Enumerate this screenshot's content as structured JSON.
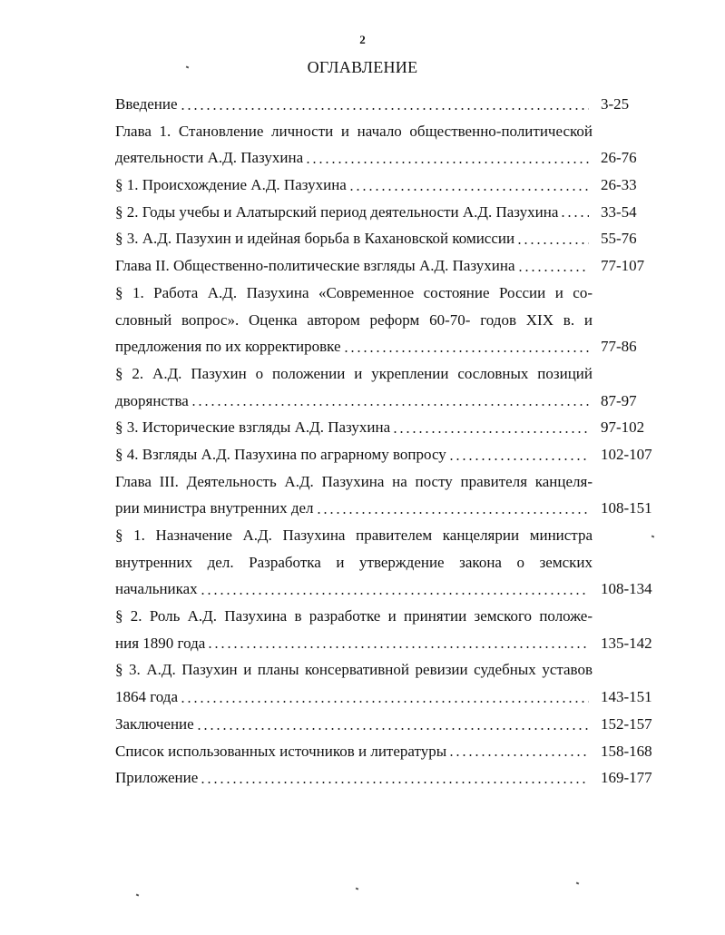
{
  "page_number": "2",
  "title": "ОГЛАВЛЕНИЕ",
  "entries": [
    {
      "lines": [
        "Введение"
      ],
      "pages": "3-25"
    },
    {
      "lines": [
        "Глава 1. Становление личности и начало общественно-политической",
        "деятельности  А.Д. Пазухина"
      ],
      "pages": "26-76"
    },
    {
      "lines": [
        "§ 1. Происхождение А.Д. Пазухина"
      ],
      "pages": "26-33"
    },
    {
      "lines": [
        "§ 2. Годы учебы и Алатырский период деятельности А.Д. Пазухина"
      ],
      "pages": "33-54"
    },
    {
      "lines": [
        "§ 3. А.Д. Пазухин и идейная борьба в Кахановской комиссии"
      ],
      "pages": "55-76"
    },
    {
      "lines": [
        "Глава II. Общественно-политические взгляды А.Д. Пазухина"
      ],
      "pages": "77-107"
    },
    {
      "lines": [
        "§ 1. Работа А.Д. Пазухина «Современное состояние России и   со-",
        "словный вопрос». Оценка автором реформ 60-70- годов XIX в. и",
        "предложения по их корректировке"
      ],
      "pages": "77-86"
    },
    {
      "lines": [
        "§ 2. А.Д. Пазухин о положении и укреплении сословных позиций",
        "дворянства"
      ],
      "pages": "87-97"
    },
    {
      "lines": [
        "§ 3. Исторические взгляды А.Д. Пазухина"
      ],
      "pages": "97-102"
    },
    {
      "lines": [
        "§ 4. Взгляды А.Д. Пазухина по аграрному вопросу"
      ],
      "pages": "102-107"
    },
    {
      "lines": [
        "Глава III. Деятельность А.Д. Пазухина на посту правителя канцеля-",
        "рии министра внутренних дел"
      ],
      "pages": "108-151"
    },
    {
      "lines": [
        "§ 1. Назначение А.Д. Пазухина правителем канцелярии министра",
        "внутренних дел. Разработка и утверждение закона о земских",
        "начальниках"
      ],
      "pages": "108-134"
    },
    {
      "lines": [
        "§ 2. Роль А.Д. Пазухина в разработке и принятии земского положе-",
        "ния 1890 года"
      ],
      "pages": "135-142"
    },
    {
      "lines": [
        "§ 3. А.Д. Пазухин и планы консервативной ревизии судебных уставов",
        "1864 года"
      ],
      "pages": "143-151"
    },
    {
      "lines": [
        "Заключение"
      ],
      "pages": "152-157"
    },
    {
      "lines": [
        "Список использованных источников и литературы"
      ],
      "pages": "158-168"
    },
    {
      "lines": [
        "Приложение"
      ],
      "pages": "169-177"
    }
  ]
}
